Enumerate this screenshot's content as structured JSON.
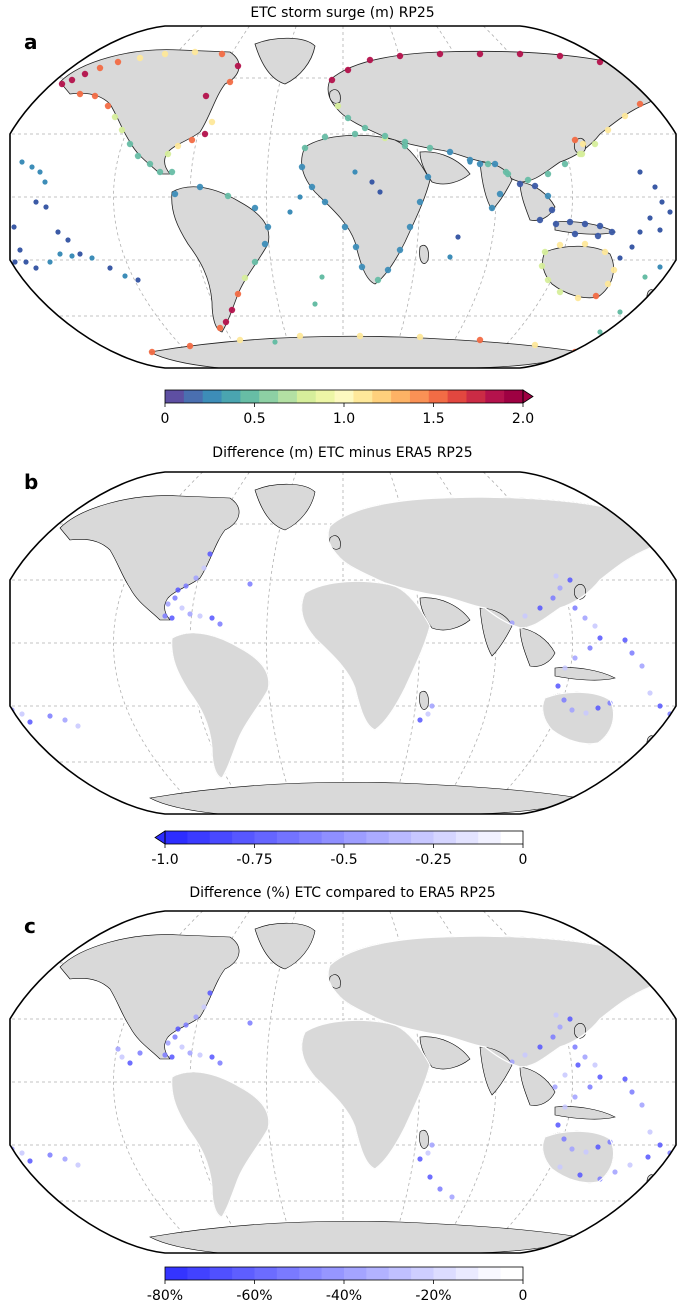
{
  "panels": [
    {
      "id": "a",
      "letter": "a",
      "title": "ETC storm surge (m) RP25",
      "colorbar": {
        "ticks": [
          "0",
          "0.5",
          "1.0",
          "1.5",
          "2.0"
        ],
        "tick_values": [
          0,
          0.5,
          1.0,
          1.5,
          2.0
        ],
        "range": [
          0,
          2.0
        ],
        "extend": "max",
        "colors": [
          "#5e4fa2",
          "#4a6fb0",
          "#3d8db8",
          "#4aa5b0",
          "#67bda5",
          "#8dd0a4",
          "#b3e0a3",
          "#d6ee9b",
          "#edf6a6",
          "#fdf9c0",
          "#fee89a",
          "#fed07c",
          "#fdb265",
          "#fa9155",
          "#f26c45",
          "#e2473f",
          "#cb2b45",
          "#b4124c",
          "#9e0142"
        ]
      },
      "coast_colors": [
        "#3b5aa6",
        "#3d8db8",
        "#67bda5",
        "#d6ee9b",
        "#fee89a",
        "#f26c45",
        "#b4124c"
      ]
    },
    {
      "id": "b",
      "letter": "b",
      "title": "Difference (m) ETC minus ERA5 RP25",
      "colorbar": {
        "ticks": [
          "-1.0",
          "-0.75",
          "-0.5",
          "-0.25",
          "0"
        ],
        "tick_values": [
          -1.0,
          -0.75,
          -0.5,
          -0.25,
          0
        ],
        "range": [
          -1.0,
          0
        ],
        "extend": "min",
        "colors": [
          "#2d2dff",
          "#3b3bff",
          "#4949ff",
          "#5757ff",
          "#6565ff",
          "#7373ff",
          "#8181ff",
          "#8f8fff",
          "#9d9dff",
          "#ababff",
          "#b9b9ff",
          "#c7c7ff",
          "#d5d5ff",
          "#e3e3ff",
          "#f1f1ff",
          "#ffffff"
        ]
      }
    },
    {
      "id": "c",
      "letter": "c",
      "title": "Difference (%) ETC compared to ERA5 RP25",
      "colorbar": {
        "ticks": [
          "-80%",
          "-60%",
          "-40%",
          "-20%",
          "0"
        ],
        "tick_values": [
          -80,
          -60,
          -40,
          -20,
          0
        ],
        "range": [
          -80,
          0
        ],
        "extend": "none",
        "colors": [
          "#3434ff",
          "#4242ff",
          "#5050ff",
          "#5e5eff",
          "#6c6cff",
          "#7a7aff",
          "#8888ff",
          "#9696ff",
          "#a4a4ff",
          "#b2b2ff",
          "#c0c0ff",
          "#ceceff",
          "#dcdcff",
          "#eaeaff",
          "#f8f8ff",
          "#ffffff"
        ]
      }
    }
  ],
  "map_style": {
    "land_color": "#d9d9d9",
    "ocean_color": "#ffffff",
    "grid_color": "#b0b0b0",
    "projection": "Robinson",
    "grid": true
  }
}
